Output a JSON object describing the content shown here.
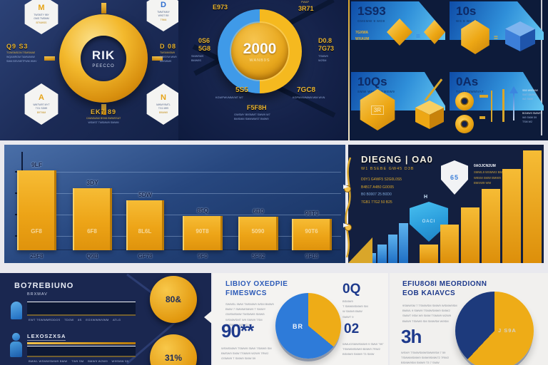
{
  "colors": {
    "gold": "#eeaa15",
    "blue": "#2e7fd9",
    "navy": "#15234a",
    "banner_blue": "#53b9ef",
    "panel_white": "#f4f3f1"
  },
  "chart_data": [
    {
      "type": "bar",
      "title": "Descending gold bar chart (middle-left panel)",
      "categories": [
        "25F8",
        "Q9B",
        "GF78",
        "9F0",
        "5F92",
        "9F18"
      ],
      "values": [
        112,
        87,
        70,
        48,
        47,
        44
      ],
      "bar_top_labels": [
        "9LF",
        "3DY",
        "5DW",
        "85Q",
        "6B0",
        "98T3"
      ],
      "bar_inner_labels": [
        "GF8",
        "6F8",
        "8L6L",
        "90T8",
        "5090",
        "90T6"
      ],
      "xlabel": "",
      "ylabel": "",
      "value_units": "relative bar height in px (no numeric axis labels visible)",
      "grid": true,
      "bar_color": "#eeaa15"
    },
    {
      "type": "bar",
      "title": "Ascending growth bars (middle-right panel)",
      "series": [
        {
          "name": "blue",
          "color": "#2e8fe0",
          "values": [
            14,
            26,
            40,
            56
          ]
        },
        {
          "name": "gold",
          "color": "#f2a312",
          "values": [
            26,
            54,
            78,
            104,
            132,
            158
          ]
        }
      ],
      "value_units": "relative bar height in px"
    },
    {
      "type": "pie",
      "title": "Bottom-middle pie",
      "slices": [
        {
          "label": "",
          "color": "#eeac17",
          "percent": 36
        },
        {
          "label": "BR",
          "color": "#2e7bd9",
          "percent": 64
        }
      ]
    },
    {
      "type": "pie",
      "title": "Bottom-right pie",
      "slices": [
        {
          "label": "J S9A",
          "color": "#eeac17",
          "percent": 62
        },
        {
          "label": "",
          "color": "#1d3a7c",
          "percent": 38
        }
      ]
    },
    {
      "type": "gauge",
      "title": "Top-middle ring gauge",
      "value": "2000",
      "sub": "WANB9S",
      "segments": [
        {
          "color": "#f5b91f",
          "percent": 50
        },
        {
          "color": "#3f9ae8",
          "percent": 50
        }
      ]
    }
  ],
  "top_left": {
    "ring": {
      "label": "RIK",
      "sub": "PEECCO"
    },
    "hexagons": [
      {
        "icon": "M",
        "lines": [
          "TWSMTY 98Y",
          "GMS TMSMM",
          "BTMWSS"
        ]
      },
      {
        "icon": "D",
        "lines": [
          "TMMTMMY",
          "W9GT B9",
          "T9M4"
        ]
      },
      {
        "icon": "A",
        "lines": [
          "WMTW9T MYT",
          "TG1 S2M9",
          "B9TWM"
        ]
      },
      {
        "icon": "N",
        "lines": [
          "MWMY9MTL",
          "TG1 M99",
          "B9MW9"
        ]
      }
    ],
    "label_left": {
      "title": "Q9 S3",
      "lines": [
        "TGWSMSON TSMSMAE",
        "WQAMRGM TAMWANW",
        "SMM BSVMETFWM WMV"
      ]
    },
    "label_right": {
      "title": "D 08",
      "lines": [
        "TMSMMSM9",
        "WMSYM MW9",
        "BMSWM9"
      ]
    },
    "label_bottom": {
      "title": "EK7 89",
      "lines": [
        "CAWAWAM BSH8 BWMSSAT",
        "WSMST TMSMW9 SMWM"
      ]
    }
  },
  "top_mid": {
    "gauge_value": "2000",
    "gauge_sub": "WANB9S",
    "label_tl": "E973",
    "label_tr_small": "PWAP",
    "label_tr": "3R71",
    "label_left1": "0S6",
    "label_left2": "5G8",
    "label_left_lines": [
      "SMWSM9",
      "BMW9S"
    ],
    "label_right1": "D0.8",
    "label_right2": "7G73",
    "label_right_lines": [
      "TSMW9",
      "W2SM"
    ],
    "label_bl": "5S5",
    "label_bl_sub": "KGWPWVMMVMT W7",
    "label_br": "7GC8",
    "label_br_sub": "KGPWVWMWM WM WVN",
    "label_bottom": "F5F8H",
    "label_bottom_lines": [
      "GWSMY B9SMMT SMW9 W7",
      "BMSMM SMMWMST BMW9"
    ]
  },
  "top_right": {
    "quadrants": [
      {
        "number": "1S93",
        "sub": "GMSMW 9 MG9",
        "side_lines": [
          "7GXWA",
          "WXAUM"
        ]
      },
      {
        "number": "10s",
        "sub": "WS 9 WCSG",
        "equals": "="
      },
      {
        "number": "10Qs",
        "sub": "SMW WMW9 GMSW9",
        "emblem": "3R"
      },
      {
        "number": "0As",
        "sub": "TGMWMWMVAT",
        "block1_lines": [
          "SB0 W9SMW",
          "SMT BMW9",
          "W2 SMW"
        ],
        "block2_lines": [
          "BGMW9 SMW9T",
          "W9 SMW 59",
          "TSM W2"
        ]
      }
    ],
    "equals_q1": "="
  },
  "mid_panel": {
    "heading": "DIEGNG | OA0",
    "subheading": "W1 BSEBE GW45 D3B",
    "lines": [
      "D0Y1 G4WF5 S2G0L0S5",
      "B4B1T A4B0 G0O05",
      "B0 B0007 25 B0D0",
      "7GB1 77G2 50 B25"
    ],
    "shield_white_emblem": "65",
    "shield_note_lines": [
      "0AOJCN2UM",
      "SMWL9 WSMW2 BMW",
      "W9SM SMW BMW9",
      "BMSW9 WM"
    ],
    "shield_blue_label": "OACI",
    "marker": "H"
  },
  "bottom_left": {
    "heading": "BO7REBIUNO",
    "sub": "BRXMAV",
    "row1_cells": "EWT TSWWMRDDGS    TDGW    8S    EGXWWWVWM    ATLG",
    "row2_title": "LEXOSZXSA",
    "row2_cells": "BMWL WSMWSMW9 BMW    TW9 SM    BMW9 W2W9    W9SMW 59",
    "circle1": "80&",
    "circle2": "31%"
  },
  "bottom_mid": {
    "heading1": "LIBIOY OXEDPIE",
    "heading2": "FIMESWCS",
    "para1": [
      "SWMSL 9MW TMSMW9 WSM BMW9",
      "BMW 7 SMWMSMW9 T SMWY",
      "GWSMSMW TMSMW9 SMW5",
      "WSMWSMT W9 SMW9 TSM",
      "BMSMW9 WSMT 59"
    ],
    "big1": "90**",
    "para2": [
      "WSMSMW9 TSMW9 SMW 7SMW9 SM",
      "BMSW9 SMW TSMW9 W2W9 7RW2",
      "GSMW9 T SMW9 SMW 59"
    ],
    "stat1": "0Q",
    "stat1_lines": [
      "BSMW9",
      "T SMWMSMW9 SM",
      "W SMW9 BMW",
      "SMWT 9"
    ],
    "stat2": "02",
    "stat2_lines": [
      "WMUGSMWSMW9 9 SMW \"99\"",
      "TSMWMSMW9 BMW9 7RW2",
      "BSMW9 SMW9 T3 SMW"
    ],
    "pie_label": "BR"
  },
  "bottom_right": {
    "heading1": "EFIU8O8I MEORDIONN",
    "heading2": "EOB KAIAVCS",
    "para1": [
      "9SMWSM 7 TSMWSM SMW9 WSMW9SM",
      "BMWL 9 SMW9 TSMWSMW9 SMW2",
      "SMWT 9SM W9 SMW TSMW9 W2W9",
      "BMW9 TSMW9 SM SMWSM W9SM"
    ],
    "big": "3h",
    "para2": [
      "WSMY TSMWSMWSMW9SM 7 59",
      "TSMWMSMW9 SMW9SMW72 7RW2",
      "BSMW9SM SMW9 T3 7 SMW"
    ],
    "pie_label": "J S9A"
  }
}
